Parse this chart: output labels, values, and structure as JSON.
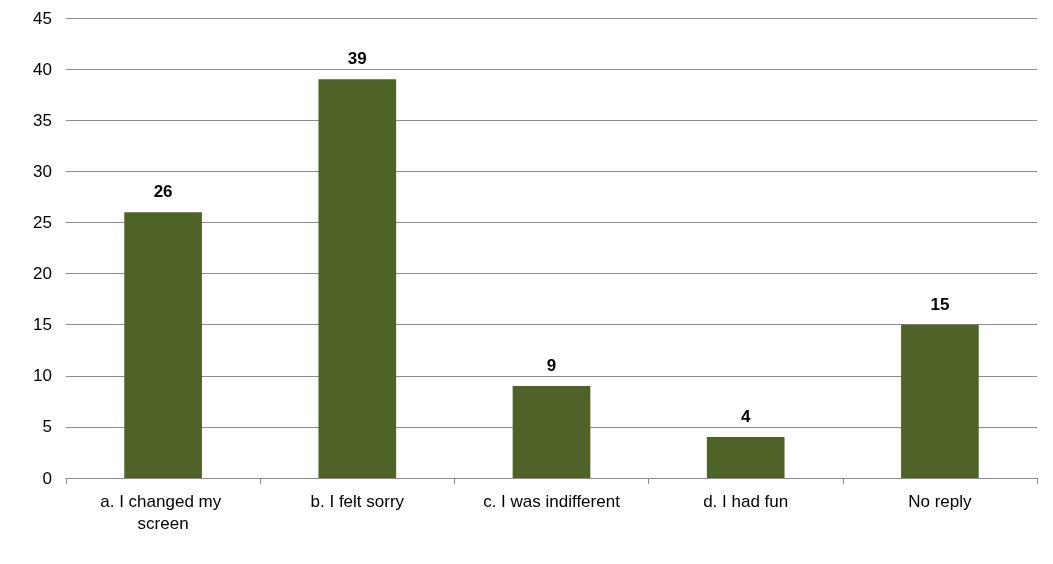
{
  "chart_data": {
    "type": "bar",
    "categories": [
      "a. I changed my screen",
      "b. I felt sorry",
      "c. I was indifferent",
      "d. I had fun",
      "No reply"
    ],
    "values": [
      26,
      39,
      9,
      4,
      15
    ],
    "color": "#4f6228",
    "ylim": [
      0,
      45
    ],
    "yticks": [
      0,
      5,
      10,
      15,
      20,
      25,
      30,
      35,
      40,
      45
    ],
    "grid": "y",
    "data_labels": true
  }
}
